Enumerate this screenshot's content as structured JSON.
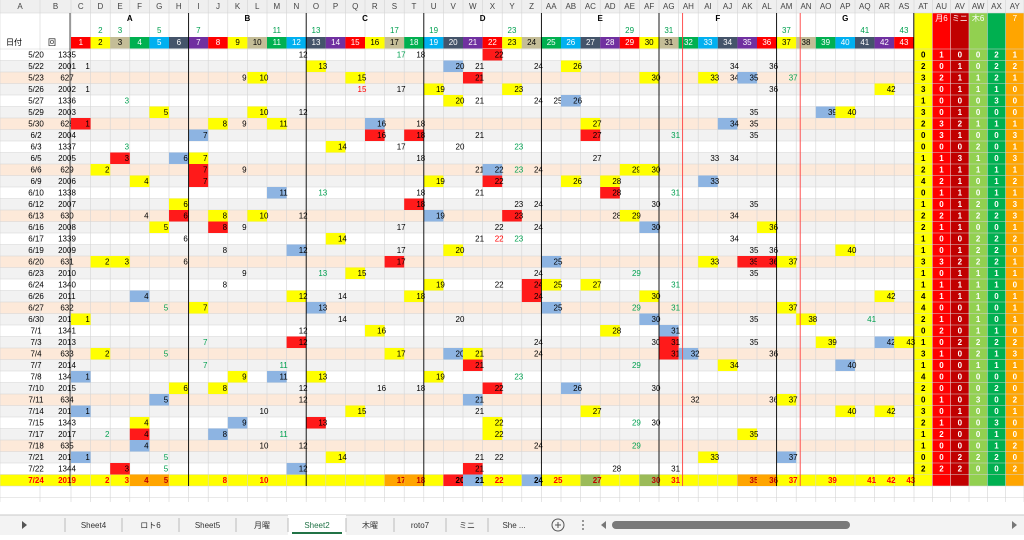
{
  "column_letters": [
    "A",
    "B",
    "C",
    "D",
    "E",
    "F",
    "G",
    "H",
    "I",
    "J",
    "K",
    "L",
    "M",
    "N",
    "O",
    "P",
    "Q",
    "R",
    "S",
    "T",
    "U",
    "V",
    "W",
    "X",
    "Y",
    "Z",
    "AA",
    "AB",
    "AC",
    "AD",
    "AE",
    "AF",
    "AG",
    "AH",
    "AI",
    "AJ",
    "AK",
    "AL",
    "AM",
    "AN",
    "AO",
    "AP",
    "AQ",
    "AR",
    "AS",
    "AT",
    "AU",
    "AV",
    "AW",
    "AX",
    "AY"
  ],
  "groups": [
    "A",
    "B",
    "C",
    "D",
    "E",
    "F",
    "G"
  ],
  "primes": [
    2,
    3,
    5,
    7,
    11,
    13,
    17,
    19,
    23,
    29,
    31,
    37,
    41,
    43
  ],
  "header": {
    "date": "日付",
    "round": "回",
    "numbers": [
      1,
      2,
      3,
      4,
      5,
      6,
      7,
      8,
      9,
      10,
      11,
      12,
      13,
      14,
      15,
      16,
      17,
      18,
      19,
      20,
      21,
      22,
      23,
      24,
      25,
      26,
      27,
      28,
      29,
      30,
      31,
      32,
      33,
      34,
      35,
      36,
      37,
      38,
      39,
      40,
      41,
      42,
      43
    ],
    "extra": [
      "月6",
      "ミニ",
      "木6",
      "7"
    ]
  },
  "rows": [
    {
      "date": "5/20",
      "id": 1335,
      "cells": [
        12,
        [
          17,
          "g"
        ],
        18,
        [
          22,
          "r"
        ]
      ],
      "counts": [
        0,
        1,
        0,
        0,
        2,
        1
      ]
    },
    {
      "date": "5/22",
      "id": 2001,
      "cells": [
        1,
        [
          13,
          "y"
        ],
        [
          20,
          "b"
        ],
        21,
        24,
        [
          26,
          "y"
        ],
        34,
        36
      ],
      "counts": [
        2,
        0,
        1,
        0,
        2,
        2
      ]
    },
    {
      "date": "5/23",
      "id": 627,
      "cells": [
        9,
        [
          10,
          "y"
        ],
        [
          15,
          "y"
        ],
        [
          21,
          "r"
        ],
        [
          30,
          "y"
        ],
        [
          33,
          "y"
        ],
        34,
        [
          35,
          "b"
        ],
        [
          37,
          "g"
        ]
      ],
      "counts": [
        3,
        2,
        1,
        1,
        2,
        1
      ]
    },
    {
      "date": "5/26",
      "id": 2002,
      "cells": [
        1,
        [
          15,
          "rt"
        ],
        17,
        [
          19,
          "y"
        ],
        [
          23,
          "y"
        ],
        36,
        [
          42,
          "y"
        ]
      ],
      "counts": [
        3,
        0,
        1,
        1,
        1,
        0
      ]
    },
    {
      "date": "5/27",
      "id": 1336,
      "cells": [
        [
          3,
          "g"
        ],
        [
          20,
          "y"
        ],
        21,
        24,
        25,
        [
          26,
          "b"
        ]
      ],
      "counts": [
        1,
        0,
        0,
        0,
        3,
        0
      ]
    },
    {
      "date": "5/29",
      "id": 2003,
      "cells": [
        [
          5,
          "y"
        ],
        [
          10,
          "y"
        ],
        12,
        35,
        [
          39,
          "b"
        ],
        [
          40,
          "y"
        ]
      ],
      "counts": [
        3,
        0,
        1,
        0,
        0,
        0
      ]
    },
    {
      "date": "5/30",
      "id": 628,
      "cells": [
        [
          1,
          "r"
        ],
        [
          8,
          "y"
        ],
        9,
        [
          11,
          "y"
        ],
        [
          16,
          "b"
        ],
        18,
        [
          27,
          "y"
        ],
        [
          34,
          "b"
        ],
        35
      ],
      "counts": [
        2,
        3,
        2,
        1,
        1,
        1
      ]
    },
    {
      "date": "6/2",
      "id": 2004,
      "cells": [
        [
          7,
          "b"
        ],
        [
          16,
          "r"
        ],
        [
          18,
          "r"
        ],
        21,
        [
          27,
          "r"
        ],
        [
          31,
          "g"
        ],
        35
      ],
      "counts": [
        0,
        3,
        1,
        0,
        0,
        3
      ]
    },
    {
      "date": "6/3",
      "id": 1337,
      "cells": [
        [
          3,
          "g"
        ],
        [
          14,
          "y"
        ],
        17,
        20,
        [
          23,
          "g"
        ]
      ],
      "counts": [
        0,
        0,
        0,
        2,
        0,
        1
      ]
    },
    {
      "date": "6/5",
      "id": 2005,
      "cells": [
        [
          3,
          "r"
        ],
        [
          6,
          "b"
        ],
        [
          7,
          "y"
        ],
        18,
        27,
        33,
        34
      ],
      "counts": [
        1,
        1,
        3,
        1,
        0,
        3
      ]
    },
    {
      "date": "6/6",
      "id": 629,
      "cells": [
        [
          2,
          "y"
        ],
        [
          7,
          "r"
        ],
        9,
        21,
        [
          22,
          "b"
        ],
        [
          23,
          "g"
        ],
        24,
        [
          29,
          "y"
        ],
        [
          30,
          "y"
        ]
      ],
      "counts": [
        2,
        1,
        1,
        1,
        1,
        1
      ]
    },
    {
      "date": "6/9",
      "id": 2006,
      "cells": [
        [
          4,
          "y"
        ],
        [
          7,
          "r"
        ],
        [
          19,
          "y"
        ],
        [
          22,
          "r"
        ],
        [
          26,
          "y"
        ],
        [
          28,
          "y"
        ],
        [
          33,
          "b"
        ]
      ],
      "counts": [
        4,
        2,
        1,
        0,
        1,
        2
      ]
    },
    {
      "date": "6/10",
      "id": 1338,
      "cells": [
        [
          11,
          "b"
        ],
        [
          13,
          "g"
        ],
        18,
        21,
        [
          28,
          "r"
        ],
        [
          31,
          "g"
        ]
      ],
      "counts": [
        0,
        1,
        1,
        0,
        1,
        1
      ]
    },
    {
      "date": "6/12",
      "id": 2007,
      "cells": [
        [
          6,
          "y"
        ],
        [
          18,
          "r"
        ],
        23,
        24,
        30,
        35
      ],
      "counts": [
        1,
        0,
        1,
        2,
        0,
        3
      ]
    },
    {
      "date": "6/13",
      "id": 630,
      "cells": [
        4,
        [
          6,
          "r"
        ],
        [
          8,
          "y"
        ],
        [
          10,
          "y"
        ],
        12,
        [
          19,
          "b"
        ],
        [
          23,
          "r"
        ],
        28,
        [
          29,
          "y"
        ],
        34
      ],
      "counts": [
        2,
        2,
        1,
        2,
        2,
        3
      ]
    },
    {
      "date": "6/16",
      "id": 2008,
      "cells": [
        [
          5,
          "y"
        ],
        [
          8,
          "r"
        ],
        9,
        17,
        22,
        24,
        [
          30,
          "b"
        ],
        [
          36,
          "y"
        ]
      ],
      "counts": [
        2,
        1,
        1,
        0,
        0,
        1
      ]
    },
    {
      "date": "6/17",
      "id": 1339,
      "cells": [
        6,
        [
          14,
          "y"
        ],
        21,
        [
          22,
          "rt"
        ],
        [
          23,
          "g"
        ],
        34
      ],
      "counts": [
        1,
        0,
        0,
        2,
        2,
        2
      ]
    },
    {
      "date": "6/19",
      "id": 2009,
      "cells": [
        8,
        [
          12,
          "b"
        ],
        17,
        [
          20,
          "y"
        ],
        35,
        36,
        [
          40,
          "y"
        ]
      ],
      "counts": [
        1,
        0,
        1,
        2,
        2,
        0
      ]
    },
    {
      "date": "6/20",
      "id": 631,
      "cells": [
        [
          2,
          "y"
        ],
        [
          3,
          "y"
        ],
        6,
        [
          17,
          "r"
        ],
        [
          25,
          "b"
        ],
        [
          33,
          "y"
        ],
        [
          35,
          "r"
        ],
        [
          36,
          "r"
        ],
        [
          37,
          "y"
        ]
      ],
      "counts": [
        3,
        3,
        2,
        2,
        2,
        1
      ]
    },
    {
      "date": "6/23",
      "id": 2010,
      "cells": [
        9,
        [
          13,
          "g"
        ],
        [
          15,
          "y"
        ],
        24,
        [
          29,
          "g"
        ],
        35
      ],
      "counts": [
        1,
        0,
        1,
        1,
        1,
        1
      ]
    },
    {
      "date": "6/24",
      "id": 1340,
      "cells": [
        8,
        [
          19,
          "y"
        ],
        22,
        [
          24,
          "r"
        ],
        [
          25,
          "y"
        ],
        [
          27,
          "y"
        ],
        [
          31,
          "g"
        ]
      ],
      "counts": [
        1,
        1,
        1,
        1,
        1,
        0
      ]
    },
    {
      "date": "6/26",
      "id": 2011,
      "cells": [
        [
          4,
          "b"
        ],
        [
          12,
          "y"
        ],
        14,
        [
          18,
          "y"
        ],
        [
          24,
          "r"
        ],
        [
          30,
          "y"
        ],
        [
          42,
          "y"
        ]
      ],
      "counts": [
        4,
        1,
        1,
        1,
        0,
        1
      ]
    },
    {
      "date": "6/27",
      "id": 632,
      "cells": [
        [
          5,
          "g"
        ],
        [
          7,
          "y"
        ],
        [
          13,
          "b"
        ],
        [
          25,
          "b"
        ],
        [
          29,
          "g"
        ],
        [
          31,
          "g"
        ],
        [
          37,
          "y"
        ]
      ],
      "counts": [
        4,
        0,
        0,
        1,
        0,
        1
      ]
    },
    {
      "date": "6/30",
      "id": 2012,
      "cells": [
        [
          1,
          "y"
        ],
        14,
        20,
        [
          30,
          "b"
        ],
        35,
        [
          38,
          "y"
        ],
        [
          41,
          "g"
        ]
      ],
      "counts": [
        2,
        1,
        0,
        1,
        0,
        1
      ]
    },
    {
      "date": "7/1",
      "id": 1341,
      "cells": [
        12,
        [
          16,
          "y"
        ],
        [
          28,
          "y"
        ],
        [
          31,
          "b"
        ]
      ],
      "counts": [
        0,
        2,
        0,
        1,
        1,
        0
      ]
    },
    {
      "date": "7/3",
      "id": 2013,
      "cells": [
        [
          7,
          "g"
        ],
        [
          12,
          "r"
        ],
        24,
        30,
        [
          31,
          "r"
        ],
        35,
        [
          39,
          "y"
        ],
        [
          42,
          "b"
        ],
        [
          43,
          "y"
        ]
      ],
      "counts": [
        1,
        0,
        2,
        2,
        2,
        2
      ]
    },
    {
      "date": "7/4",
      "id": 633,
      "cells": [
        [
          2,
          "y"
        ],
        [
          5,
          "g"
        ],
        [
          17,
          "y"
        ],
        [
          20,
          "b"
        ],
        [
          21,
          "y"
        ],
        24,
        [
          31,
          "r"
        ],
        [
          32,
          "b"
        ],
        36
      ],
      "counts": [
        3,
        1,
        0,
        2,
        1,
        3
      ]
    },
    {
      "date": "7/7",
      "id": 2014,
      "cells": [
        [
          7,
          "g"
        ],
        [
          11,
          "g"
        ],
        [
          21,
          "r"
        ],
        [
          29,
          "g"
        ],
        [
          34,
          "y"
        ],
        [
          40,
          "b"
        ]
      ],
      "counts": [
        1,
        0,
        0,
        1,
        1,
        1
      ]
    },
    {
      "date": "7/8",
      "id": 1342,
      "cells": [
        [
          1,
          "b"
        ],
        [
          9,
          "y"
        ],
        [
          11,
          "b"
        ],
        [
          13,
          "y"
        ],
        [
          19,
          "y"
        ],
        [
          23,
          "g"
        ]
      ],
      "counts": [
        4,
        0,
        0,
        0,
        0,
        0
      ]
    },
    {
      "date": "7/10",
      "id": 2015,
      "cells": [
        [
          6,
          "y"
        ],
        [
          8,
          "y"
        ],
        12,
        16,
        18,
        [
          22,
          "r"
        ],
        [
          26,
          "b"
        ],
        30
      ],
      "counts": [
        2,
        0,
        0,
        0,
        2,
        0
      ]
    },
    {
      "date": "7/11",
      "id": 634,
      "cells": [
        [
          5,
          "b"
        ],
        12,
        [
          21,
          "b"
        ],
        32,
        36,
        [
          37,
          "y"
        ]
      ],
      "counts": [
        0,
        1,
        0,
        3,
        0,
        2
      ]
    },
    {
      "date": "7/14",
      "id": 2016,
      "cells": [
        [
          1,
          "b"
        ],
        10,
        [
          15,
          "y"
        ],
        21,
        [
          27,
          "y"
        ],
        [
          40,
          "y"
        ],
        [
          42,
          "y"
        ]
      ],
      "counts": [
        3,
        0,
        1,
        0,
        0,
        1
      ]
    },
    {
      "date": "7/15",
      "id": 1343,
      "cells": [
        [
          4,
          "y"
        ],
        [
          9,
          "b"
        ],
        [
          13,
          "r"
        ],
        [
          22,
          "y"
        ],
        [
          29,
          "g"
        ],
        30
      ],
      "counts": [
        2,
        1,
        0,
        0,
        3,
        0
      ]
    },
    {
      "date": "7/17",
      "id": 2017,
      "cells": [
        [
          2,
          "g"
        ],
        [
          4,
          "r"
        ],
        [
          8,
          "b"
        ],
        [
          11,
          "g"
        ],
        [
          22,
          "y"
        ],
        [
          35,
          "y"
        ]
      ],
      "counts": [
        1,
        2,
        0,
        0,
        1,
        0
      ]
    },
    {
      "date": "7/18",
      "id": 635,
      "cells": [
        [
          4,
          "b"
        ],
        10,
        12,
        24,
        [
          29,
          "g"
        ]
      ],
      "counts": [
        1,
        0,
        0,
        0,
        1,
        2
      ]
    },
    {
      "date": "7/21",
      "id": 2018,
      "cells": [
        [
          1,
          "b"
        ],
        [
          5,
          "g"
        ],
        [
          14,
          "y"
        ],
        21,
        22,
        [
          33,
          "y"
        ],
        [
          37,
          "b"
        ]
      ],
      "counts": [
        0,
        0,
        2,
        2,
        2,
        0
      ]
    },
    {
      "date": "7/22",
      "id": 1344,
      "cells": [
        [
          3,
          "r"
        ],
        [
          5,
          "g"
        ],
        [
          12,
          "b"
        ],
        [
          21,
          "r"
        ],
        28,
        31
      ],
      "counts": [
        2,
        2,
        2,
        0,
        0,
        2
      ]
    }
  ],
  "summary": {
    "date": "7/24",
    "id": 2019,
    "cells": [
      2,
      3,
      [
        4,
        "o"
      ],
      [
        5,
        "o"
      ],
      8,
      10,
      [
        17,
        "o"
      ],
      [
        18,
        "o"
      ],
      [
        20,
        "r"
      ],
      [
        21,
        "b"
      ],
      22,
      [
        24,
        "b"
      ],
      25,
      [
        27,
        "ol"
      ],
      [
        30,
        "ol"
      ],
      31,
      [
        35,
        "o"
      ],
      [
        36,
        "o"
      ],
      37,
      39,
      41,
      42,
      43
    ]
  },
  "tabs": [
    "Sheet4",
    "ロト6",
    "Sheet5",
    "月曜",
    "Sheet2",
    "木曜",
    "roto7",
    "ミニ",
    "She ..."
  ],
  "active_tab": "Sheet2"
}
